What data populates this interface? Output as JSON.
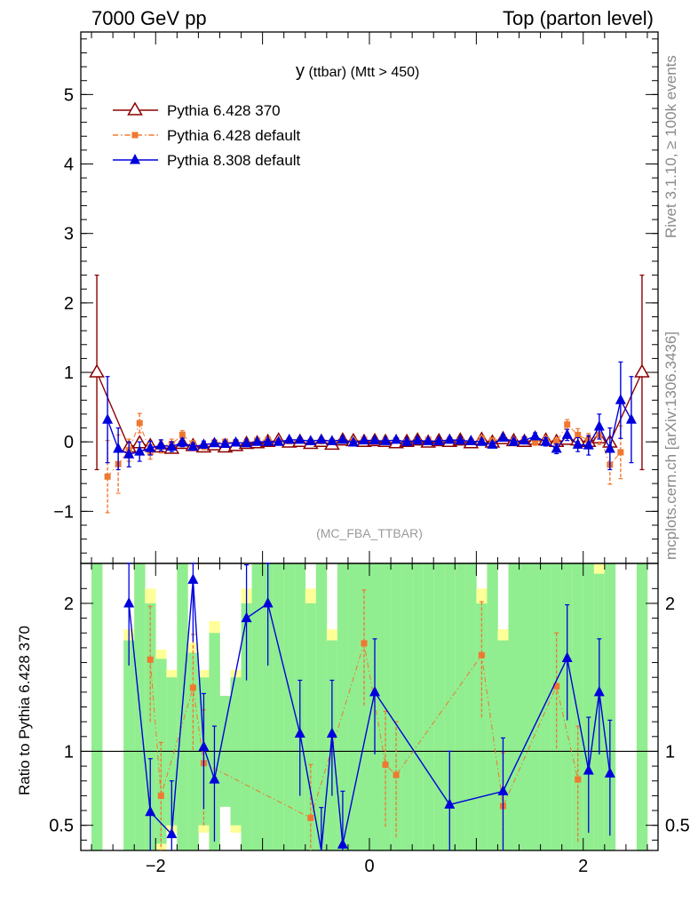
{
  "header": {
    "left": "7000 GeV pp",
    "right": "Top (parton level)"
  },
  "side_labels": {
    "rivet": "Rivet 3.1.10, ≥ 100k events",
    "mcplots": "mcplots.cern.ch [arXiv:1306.3436]"
  },
  "chart_data": [
    {
      "type": "line",
      "title": "y (ttbar) (Mtt > 450)",
      "title_main": "y",
      "title_sub": "(ttbar) (Mtt > 450)",
      "watermark": "(MC_FBA_TTBAR)",
      "xlim": [
        -2.7,
        2.7
      ],
      "ylim": [
        -1.75,
        5.9
      ],
      "xticks": [
        -2,
        0,
        2
      ],
      "xtick_labels": [
        "−2",
        "0",
        "2"
      ],
      "yticks": [
        -1,
        0,
        1,
        2,
        3,
        4,
        5
      ],
      "ytick_labels": [
        "−1",
        "0",
        "1",
        "2",
        "3",
        "4",
        "5"
      ],
      "legend_position": "top-left",
      "series": [
        {
          "name": "Pythia 6.428 370",
          "color": "#8b0000",
          "marker": "open-triangle",
          "line": "solid",
          "x": [
            -2.55,
            -2.25,
            -2.15,
            -2.05,
            -1.95,
            -1.85,
            -1.75,
            -1.65,
            -1.55,
            -1.45,
            -1.35,
            -1.25,
            -1.15,
            -1.05,
            -0.95,
            -0.85,
            -0.75,
            -0.65,
            -0.55,
            -0.45,
            -0.35,
            -0.25,
            -0.15,
            -0.05,
            0.05,
            0.15,
            0.25,
            0.35,
            0.45,
            0.55,
            0.65,
            0.75,
            0.85,
            0.95,
            1.05,
            1.15,
            1.25,
            1.35,
            1.45,
            1.55,
            1.65,
            1.75,
            1.85,
            1.95,
            2.05,
            2.15,
            2.25,
            2.55
          ],
          "y": [
            1.0,
            -0.08,
            -0.02,
            -0.06,
            -0.08,
            -0.1,
            -0.03,
            -0.06,
            -0.08,
            -0.05,
            -0.08,
            -0.06,
            -0.03,
            -0.02,
            0.0,
            0.02,
            -0.01,
            0.0,
            -0.03,
            0.0,
            -0.04,
            0.02,
            0.01,
            0.0,
            0.01,
            0.0,
            -0.02,
            0.0,
            0.02,
            -0.01,
            0.01,
            0.0,
            0.02,
            -0.02,
            0.03,
            -0.01,
            0.04,
            0.01,
            0.0,
            0.03,
            0.02,
            0.0,
            0.03,
            0.02,
            0.0,
            0.05,
            -0.01,
            1.0
          ],
          "err": [
            1.4,
            0.06,
            0.06,
            0.06,
            0.05,
            0.05,
            0.04,
            0.04,
            0.04,
            0.04,
            0.03,
            0.03,
            0.03,
            0.03,
            0.03,
            0.03,
            0.03,
            0.03,
            0.03,
            0.03,
            0.03,
            0.03,
            0.03,
            0.03,
            0.03,
            0.03,
            0.03,
            0.03,
            0.03,
            0.03,
            0.03,
            0.03,
            0.03,
            0.03,
            0.03,
            0.03,
            0.03,
            0.04,
            0.04,
            0.04,
            0.04,
            0.05,
            0.05,
            0.06,
            0.06,
            0.06,
            0.07,
            1.4
          ]
        },
        {
          "name": "Pythia 6.428 default",
          "color": "#f07830",
          "marker": "square",
          "line": "dashdot",
          "x": [
            -2.45,
            -2.35,
            -2.25,
            -2.15,
            -2.05,
            -1.95,
            -1.85,
            -1.75,
            -1.65,
            -1.55,
            -1.45,
            -1.35,
            -1.25,
            -1.15,
            -1.05,
            -0.95,
            -0.85,
            -0.75,
            -0.65,
            -0.55,
            -0.45,
            -0.35,
            -0.25,
            -0.15,
            -0.05,
            0.05,
            0.15,
            0.25,
            0.35,
            0.45,
            0.55,
            0.65,
            0.75,
            0.85,
            0.95,
            1.05,
            1.15,
            1.25,
            1.35,
            1.45,
            1.55,
            1.65,
            1.75,
            1.85,
            1.95,
            2.05,
            2.15,
            2.25,
            2.35
          ],
          "y": [
            -0.5,
            -0.32,
            -0.12,
            0.27,
            -0.15,
            -0.07,
            -0.03,
            0.1,
            -0.03,
            -0.06,
            -0.01,
            0.0,
            -0.01,
            -0.02,
            0.02,
            0.03,
            0.0,
            0.01,
            0.02,
            0.0,
            0.01,
            0.0,
            0.02,
            0.01,
            0.03,
            0.0,
            0.01,
            0.02,
            0.0,
            0.01,
            0.03,
            0.0,
            0.02,
            0.01,
            0.0,
            0.05,
            0.02,
            0.05,
            0.01,
            0.03,
            0.0,
            0.03,
            0.0,
            0.25,
            0.1,
            0.02,
            0.1,
            -0.33,
            -0.15
          ],
          "err": [
            0.52,
            0.42,
            0.16,
            0.14,
            0.1,
            0.09,
            0.07,
            0.06,
            0.05,
            0.05,
            0.04,
            0.04,
            0.04,
            0.03,
            0.03,
            0.03,
            0.03,
            0.03,
            0.03,
            0.03,
            0.03,
            0.03,
            0.03,
            0.03,
            0.03,
            0.03,
            0.03,
            0.03,
            0.03,
            0.03,
            0.03,
            0.03,
            0.03,
            0.03,
            0.03,
            0.03,
            0.03,
            0.04,
            0.04,
            0.04,
            0.05,
            0.05,
            0.06,
            0.07,
            0.09,
            0.1,
            0.14,
            0.28,
            0.38
          ]
        },
        {
          "name": "Pythia 8.308 default",
          "color": "#0000dd",
          "marker": "triangle",
          "line": "solid",
          "x": [
            -2.45,
            -2.35,
            -2.25,
            -2.15,
            -2.05,
            -1.95,
            -1.85,
            -1.75,
            -1.65,
            -1.55,
            -1.45,
            -1.35,
            -1.25,
            -1.15,
            -1.05,
            -0.95,
            -0.85,
            -0.75,
            -0.65,
            -0.55,
            -0.45,
            -0.35,
            -0.25,
            -0.15,
            -0.05,
            0.05,
            0.15,
            0.25,
            0.35,
            0.45,
            0.55,
            0.65,
            0.75,
            0.85,
            0.95,
            1.05,
            1.15,
            1.25,
            1.35,
            1.45,
            1.55,
            1.65,
            1.75,
            1.85,
            1.95,
            2.05,
            2.15,
            2.25,
            2.35,
            2.45
          ],
          "y": [
            0.32,
            -0.1,
            -0.18,
            -0.14,
            -0.09,
            -0.05,
            -0.07,
            -0.01,
            -0.07,
            -0.04,
            -0.02,
            -0.03,
            -0.01,
            -0.02,
            0.0,
            0.0,
            0.0,
            0.03,
            0.03,
            0.01,
            0.03,
            0.01,
            0.03,
            -0.01,
            0.02,
            0.02,
            0.01,
            0.03,
            0.0,
            0.02,
            0.01,
            0.01,
            0.03,
            0.02,
            0.01,
            0.0,
            -0.04,
            0.06,
            0.0,
            0.02,
            0.08,
            0.0,
            -0.1,
            0.1,
            -0.04,
            -0.05,
            0.22,
            -0.1,
            0.6,
            0.32
          ],
          "err": [
            0.62,
            0.3,
            0.18,
            0.14,
            0.1,
            0.08,
            0.07,
            0.06,
            0.05,
            0.05,
            0.04,
            0.04,
            0.04,
            0.03,
            0.03,
            0.03,
            0.03,
            0.03,
            0.03,
            0.03,
            0.03,
            0.03,
            0.03,
            0.03,
            0.03,
            0.03,
            0.03,
            0.03,
            0.03,
            0.03,
            0.03,
            0.03,
            0.03,
            0.03,
            0.03,
            0.03,
            0.04,
            0.04,
            0.04,
            0.05,
            0.05,
            0.06,
            0.07,
            0.08,
            0.1,
            0.14,
            0.18,
            0.3,
            0.55,
            0.62
          ]
        }
      ]
    },
    {
      "type": "line",
      "ylabel": "Ratio to Pythia 6.428 370",
      "xlim": [
        -2.7,
        2.7
      ],
      "ylim": [
        0.33,
        2.27
      ],
      "yticks": [
        0.5,
        1,
        2
      ],
      "ytick_labels": [
        "0.5",
        "1",
        "2"
      ],
      "reference_line": 1,
      "series": [
        {
          "name": "Pythia 6.428 default",
          "color": "#f07830",
          "x": [
            -2.05,
            -1.95,
            -1.65,
            -1.55,
            -0.55,
            -0.05,
            0.15,
            0.25,
            1.05,
            1.25,
            1.75,
            1.95
          ],
          "y": [
            1.62,
            0.7,
            1.43,
            0.92,
            0.55,
            1.73,
            0.91,
            0.84,
            1.65,
            0.63,
            1.44,
            0.81
          ]
        },
        {
          "name": "Pythia 8.308 default",
          "color": "#0000dd",
          "x": [
            -2.25,
            -2.05,
            -1.85,
            -1.65,
            -1.55,
            -1.45,
            -1.15,
            -0.95,
            -0.65,
            -0.45,
            -0.35,
            -0.25,
            0.05,
            0.75,
            1.25,
            1.85,
            2.05,
            2.15,
            2.25
          ],
          "y": [
            2.0,
            0.59,
            0.44,
            2.16,
            1.03,
            0.81,
            1.9,
            2.0,
            1.12,
            0.26,
            1.12,
            0.37,
            1.4,
            0.64,
            0.73,
            1.63,
            0.87,
            1.4,
            0.85
          ]
        }
      ],
      "band_colors": {
        "stat": "#90ee90",
        "total": "#ffff99"
      }
    }
  ]
}
